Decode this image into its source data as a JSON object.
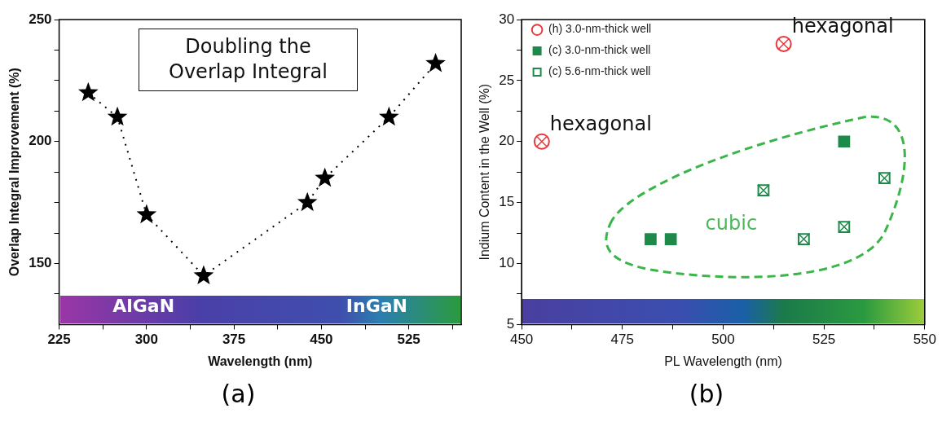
{
  "chart_data": [
    {
      "type": "line",
      "xlabel": "Wavelength (nm)",
      "ylabel": "Overlap Integral Improvement (%)",
      "line_style": "dotted",
      "marker": "star",
      "legend": false,
      "grid": false,
      "xlim": [
        225,
        570
      ],
      "xticks": [
        225,
        {
          "value": 262.5,
          "label": null
        },
        300,
        {
          "value": 337.5,
          "label": null
        },
        375,
        {
          "value": 412.5,
          "label": null
        },
        450,
        {
          "value": 487.5,
          "label": null
        },
        525,
        {
          "value": 562.5,
          "label": null
        }
      ],
      "ylim": [
        125,
        250
      ],
      "yticks": [
        {
          "value": 137.5,
          "label": null
        },
        150,
        {
          "value": 162.5,
          "label": null
        },
        {
          "value": 175,
          "label": null
        },
        {
          "value": 187.5,
          "label": null
        },
        200,
        {
          "value": 212.5,
          "label": null
        },
        {
          "value": 225,
          "label": null
        },
        {
          "value": 237.5,
          "label": null
        },
        250
      ],
      "series": [
        {
          "color": "#000000",
          "x": [
            250,
            275,
            300,
            349,
            438,
            453,
            508,
            548
          ],
          "values": [
            220,
            210,
            170,
            145,
            175,
            185,
            210,
            232
          ]
        }
      ],
      "annotations": [
        "Doubling the Overlap Integral",
        "AlGaN",
        "InGaN",
        "(a)"
      ]
    },
    {
      "type": "scatter",
      "xlabel": "PL Wavelength (nm)",
      "ylabel": "Indium Content in the Well (%)",
      "legend": "top left",
      "grid": false,
      "xlim": [
        450,
        550
      ],
      "xticks": [
        450,
        {
          "value": 462.5,
          "label": null
        },
        475,
        {
          "value": 487.5,
          "label": null
        },
        500,
        {
          "value": 512.5,
          "label": null
        },
        525,
        {
          "value": 537.5,
          "label": null
        },
        550
      ],
      "ylim": [
        5,
        30
      ],
      "yticks": [
        5,
        {
          "value": 7.5,
          "label": null
        },
        10,
        {
          "value": 12.5,
          "label": null
        },
        15,
        {
          "value": 17.5,
          "label": null
        },
        20,
        {
          "value": 22.5,
          "label": null
        },
        25,
        {
          "value": 27.5,
          "label": null
        },
        30
      ],
      "series": [
        {
          "name": "(h) 3.0-nm-thick well",
          "color": "#e8383d",
          "marker": "circle",
          "x": [
            455,
            515
          ],
          "values": [
            20,
            28
          ]
        },
        {
          "name": "(c) 3.0-nm-thick well",
          "color": "#1e8a4a",
          "marker": "square",
          "x": [
            482,
            487,
            530
          ],
          "values": [
            12,
            12,
            20
          ]
        },
        {
          "name": "(c) 5.6-nm-thick well",
          "color": "#1e8a4a",
          "marker": "cross",
          "x": [
            510,
            520,
            530,
            540
          ],
          "values": [
            16,
            12,
            13,
            17
          ]
        }
      ],
      "annotations": [
        {
          "text": "hexagonal",
          "x": 515,
          "y": 28
        },
        {
          "text": "hexagonal",
          "x": 455,
          "y": 20
        },
        "cubic",
        "(b)"
      ]
    }
  ]
}
